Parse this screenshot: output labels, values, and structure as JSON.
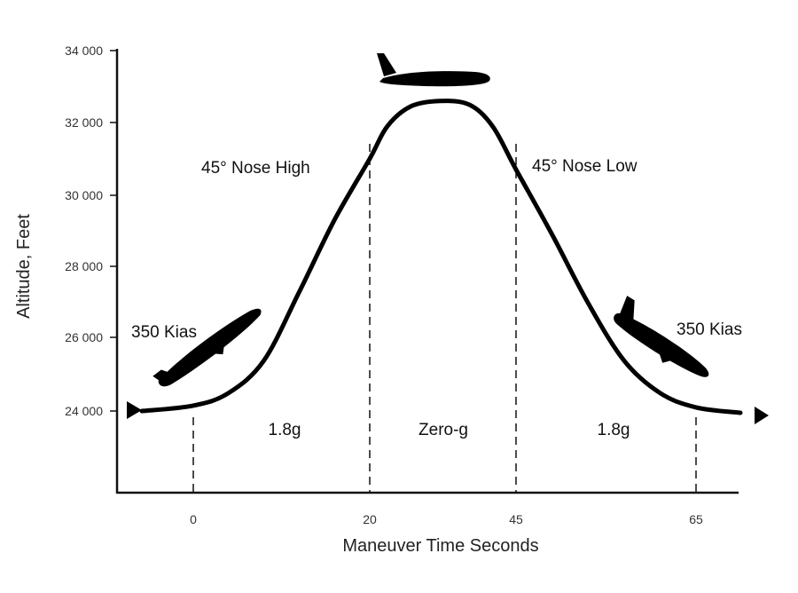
{
  "chart_data": {
    "type": "line",
    "xlabel": "Maneuver Time Seconds",
    "ylabel": "Altitude, Feet",
    "x_ticks": [
      "0",
      "20",
      "45",
      "65"
    ],
    "y_ticks": [
      "24 000",
      "26 000",
      "28 000",
      "30 000",
      "32 000",
      "34 000"
    ],
    "ylim": [
      22000,
      34000
    ],
    "grid": false,
    "series": [
      {
        "points": [
          {
            "x": -6,
            "y": 24000
          },
          {
            "x": 0,
            "y": 24150
          },
          {
            "x": 4,
            "y": 24500
          },
          {
            "x": 8,
            "y": 25400
          },
          {
            "x": 12,
            "y": 27300
          },
          {
            "x": 16,
            "y": 29300
          },
          {
            "x": 20,
            "y": 31000
          },
          {
            "x": 23,
            "y": 31900
          },
          {
            "x": 27,
            "y": 32450
          },
          {
            "x": 32,
            "y": 32600
          },
          {
            "x": 37,
            "y": 32500
          },
          {
            "x": 41,
            "y": 31900
          },
          {
            "x": 45,
            "y": 30700
          },
          {
            "x": 49,
            "y": 28900
          },
          {
            "x": 53,
            "y": 27000
          },
          {
            "x": 57,
            "y": 25400
          },
          {
            "x": 61,
            "y": 24500
          },
          {
            "x": 65,
            "y": 24100
          },
          {
            "x": 70,
            "y": 23950
          }
        ]
      }
    ],
    "phase_markers_x": [
      0,
      20,
      45,
      65
    ],
    "annotations": {
      "nose_high": "45° Nose High",
      "nose_low": "45° Nose Low",
      "kias_left": "350 Kias",
      "kias_right": "350 Kias",
      "phase_1": "1.8g",
      "phase_2": "Zero-g",
      "phase_3": "1.8g"
    }
  }
}
